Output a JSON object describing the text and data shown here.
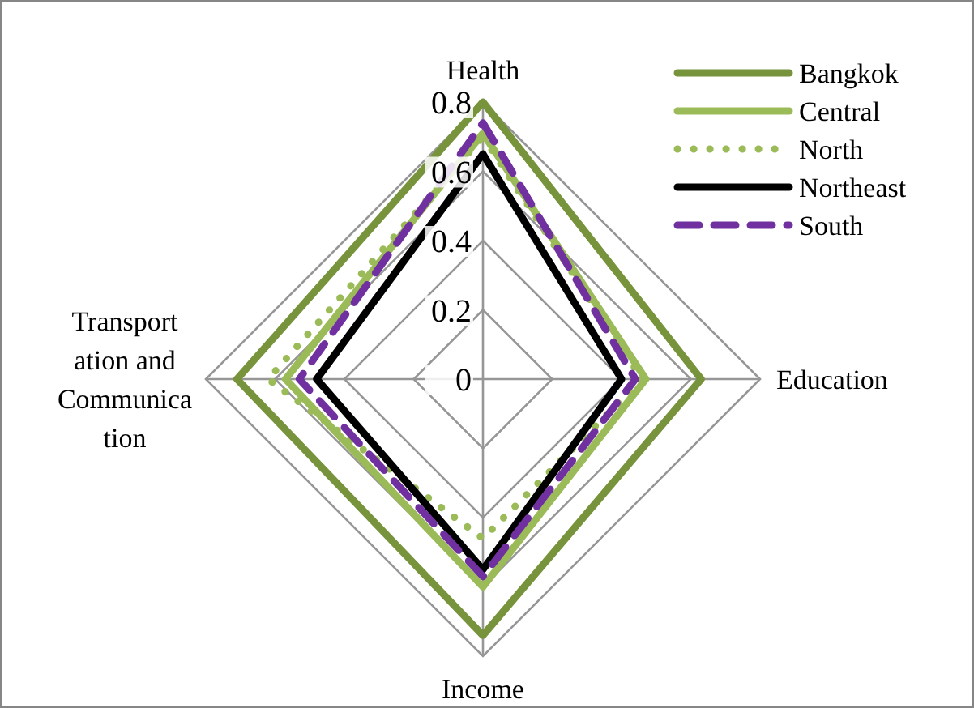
{
  "chart_data": {
    "type": "radar",
    "categories": [
      "Health",
      "Education",
      "Income",
      "Transportation and Communication"
    ],
    "ylim": [
      0,
      0.8
    ],
    "yticks": [
      0,
      0.2,
      0.4,
      0.6,
      0.8
    ],
    "grid": true,
    "legend": "top right",
    "marker": "none",
    "series": [
      {
        "name": "Bangkok",
        "color": "#77933c",
        "line_style": "solid",
        "values": [
          0.8,
          0.63,
          0.74,
          0.71
        ]
      },
      {
        "name": "Central",
        "color": "#9bbb59",
        "line_style": "solid",
        "values": [
          0.71,
          0.47,
          0.6,
          0.57
        ]
      },
      {
        "name": "North",
        "color": "#9bbb59",
        "line_style": "dotted",
        "values": [
          0.7,
          0.46,
          0.46,
          0.62
        ]
      },
      {
        "name": "Northeast",
        "color": "#000000",
        "line_style": "solid",
        "values": [
          0.65,
          0.4,
          0.55,
          0.48
        ]
      },
      {
        "name": "South",
        "color": "#7030a0",
        "line_style": "dashed",
        "values": [
          0.74,
          0.44,
          0.57,
          0.53
        ]
      }
    ]
  }
}
